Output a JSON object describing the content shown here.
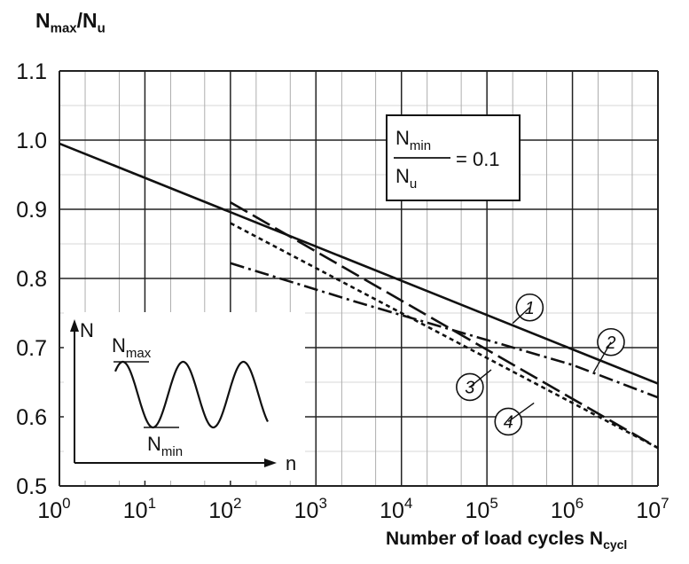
{
  "chart_data": {
    "type": "line",
    "title": "",
    "ylabel": "N",
    "ylabel_sub": "max",
    "ylabel_sep": "/N",
    "ylabel_sub2": "u",
    "xlabel": "Number of load cycles N",
    "xlabel_sub": "cycl",
    "x_scale": "log10",
    "xlim_exp": [
      0,
      7
    ],
    "ylim": [
      0.5,
      1.1
    ],
    "x_tick_base": "10",
    "x_tick_exponents": [
      "0",
      "1",
      "2",
      "3",
      "4",
      "5",
      "6",
      "7"
    ],
    "y_tick_labels": [
      "0.5",
      "0.6",
      "0.7",
      "0.8",
      "0.9",
      "1.0",
      "1.1"
    ],
    "y_ticks": [
      0.5,
      0.6,
      0.7,
      0.8,
      0.9,
      1.0,
      1.1
    ],
    "grid": true,
    "annotation": {
      "num_main": "N",
      "num_sub": "min",
      "den_main": "N",
      "den_sub": "u",
      "rhs": "= 0.1"
    },
    "series": [
      {
        "name": "1",
        "style": "solid",
        "points": [
          [
            0,
            0.995
          ],
          [
            7,
            0.648
          ]
        ],
        "label_at": [
          5.5,
          0.758
        ]
      },
      {
        "name": "2",
        "style": "dash-dot",
        "points": [
          [
            2,
            0.822
          ],
          [
            3.5,
            0.765
          ],
          [
            6,
            0.675
          ],
          [
            7,
            0.628
          ]
        ],
        "label_at": [
          6.45,
          0.708
        ]
      },
      {
        "name": "3",
        "style": "short-dash",
        "points": [
          [
            2,
            0.88
          ],
          [
            7,
            0.555
          ]
        ],
        "label_at": [
          4.8,
          0.643
        ]
      },
      {
        "name": "4",
        "style": "long-dash",
        "points": [
          [
            2,
            0.91
          ],
          [
            7,
            0.555
          ]
        ],
        "label_at": [
          5.25,
          0.593
        ]
      }
    ],
    "inset": {
      "y_axis": "N",
      "x_axis": "n",
      "max_main": "N",
      "max_sub": "max",
      "min_main": "N",
      "min_sub": "min"
    }
  }
}
